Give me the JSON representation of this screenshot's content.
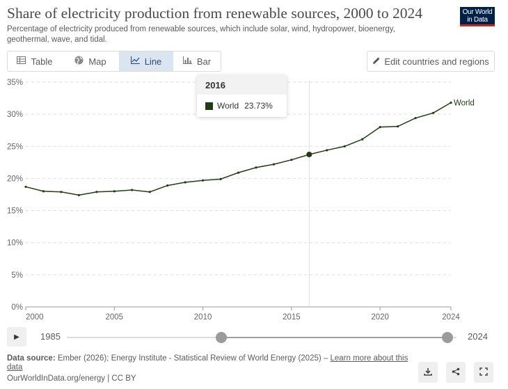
{
  "header": {
    "title": "Share of electricity production from renewable sources, 2000 to 2024",
    "subtitle": "Percentage of electricity produced from renewable sources, which include solar, wind, hydropower, bioenergy, geothermal, wave, and tidal.",
    "logo_line1": "Our World",
    "logo_line2": "in Data"
  },
  "tabs": [
    {
      "label": "Table",
      "icon": "table-icon"
    },
    {
      "label": "Map",
      "icon": "globe-icon"
    },
    {
      "label": "Line",
      "icon": "line-chart-icon",
      "active": true
    },
    {
      "label": "Bar",
      "icon": "bar-chart-icon"
    }
  ],
  "edit_button": {
    "label": "Edit countries and regions",
    "icon": "pencil-icon"
  },
  "tooltip": {
    "year": "2016",
    "series": "World",
    "value": "23.73%"
  },
  "timeline": {
    "start": "1985",
    "end": "2024",
    "play_icon": "play-icon"
  },
  "footer": {
    "source_label": "Data source:",
    "source_text": "Ember (2026); Energy Institute - Statistical Review of World Energy (2025) –",
    "learn_more": "Learn more about this data",
    "site": "OurWorldInData.org/energy | CC BY"
  },
  "actions": [
    {
      "name": "download-button",
      "icon": "download-icon"
    },
    {
      "name": "share-button",
      "icon": "share-icon"
    },
    {
      "name": "fullscreen-button",
      "icon": "fullscreen-icon"
    }
  ],
  "chart_data": {
    "type": "line",
    "ylim": [
      0,
      35
    ],
    "xlim": [
      2000,
      2024
    ],
    "y_ticks": [
      "0%",
      "5%",
      "10%",
      "15%",
      "20%",
      "25%",
      "30%",
      "35%"
    ],
    "y_tick_values": [
      0,
      5,
      10,
      15,
      20,
      25,
      30,
      35
    ],
    "x_ticks": [
      "2000",
      "2005",
      "2010",
      "2015",
      "2020",
      "2024"
    ],
    "x_tick_values": [
      2000,
      2005,
      2010,
      2015,
      2020,
      2024
    ],
    "grid": "horizontal dashed",
    "highlight_x": 2016,
    "series": [
      {
        "name": "World",
        "color": "#1f3d14",
        "x": [
          2000,
          2001,
          2002,
          2003,
          2004,
          2005,
          2006,
          2007,
          2008,
          2009,
          2010,
          2011,
          2012,
          2013,
          2014,
          2015,
          2016,
          2017,
          2018,
          2019,
          2020,
          2021,
          2022,
          2023,
          2024
        ],
        "values": [
          18.7,
          18.0,
          17.9,
          17.4,
          17.9,
          18.0,
          18.2,
          17.9,
          18.9,
          19.4,
          19.7,
          19.9,
          20.9,
          21.7,
          22.2,
          22.9,
          23.73,
          24.4,
          25.0,
          26.1,
          28.0,
          28.1,
          29.4,
          30.2,
          31.8
        ]
      }
    ]
  }
}
